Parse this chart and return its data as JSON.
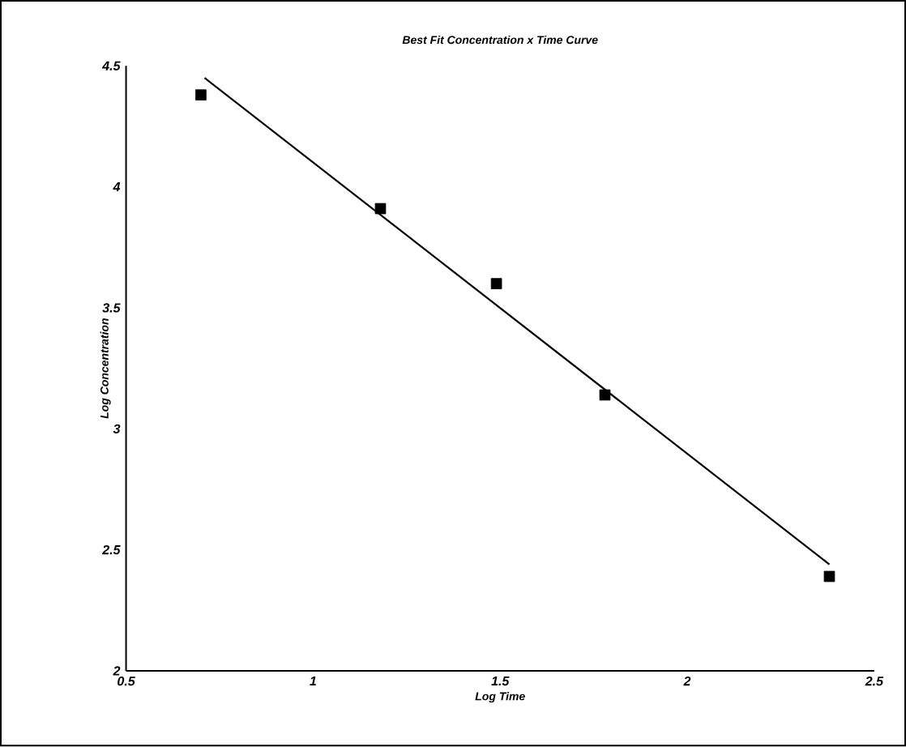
{
  "chart_data": {
    "type": "scatter",
    "title": "Best Fit Concentration x Time Curve",
    "xlabel": "Log Time",
    "ylabel": "Log Concentration",
    "xlim": [
      0.5,
      2.5
    ],
    "xticks": [
      0.5,
      1,
      1.5,
      2,
      2.5
    ],
    "ylim": [
      2,
      4.5
    ],
    "yticks": [
      2,
      2.5,
      3,
      3.5,
      4,
      4.5
    ],
    "grid": false,
    "series": [
      {
        "marker": "square",
        "color": "#000000",
        "x": [
          0.7,
          1.18,
          1.49,
          1.78,
          2.38
        ],
        "values": [
          4.38,
          3.91,
          3.6,
          3.14,
          2.39
        ]
      },
      {
        "type": "line",
        "marker": "none",
        "color": "#000000",
        "x": [
          0.71,
          2.38
        ],
        "values": [
          4.45,
          2.44
        ]
      }
    ]
  }
}
